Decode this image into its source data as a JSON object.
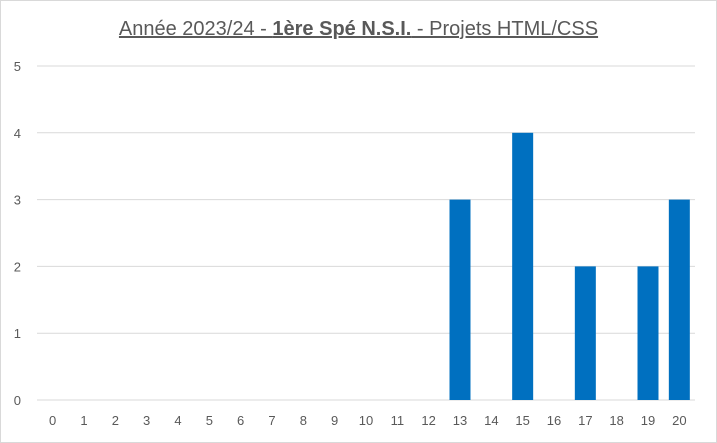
{
  "chart_data": {
    "type": "bar",
    "title": {
      "prefix": "Année 2023/24 - ",
      "bold": "1ère Spé N.S.I.",
      "suffix": " - Projets HTML/CSS"
    },
    "xlabel": "",
    "ylabel": "",
    "categories": [
      "0",
      "1",
      "2",
      "3",
      "4",
      "5",
      "6",
      "7",
      "8",
      "9",
      "10",
      "11",
      "12",
      "13",
      "14",
      "15",
      "16",
      "17",
      "18",
      "19",
      "20"
    ],
    "values": [
      0,
      0,
      0,
      0,
      0,
      0,
      0,
      0,
      0,
      0,
      0,
      0,
      0,
      3,
      0,
      4,
      0,
      2,
      0,
      2,
      3
    ],
    "ylim": [
      0,
      5
    ],
    "yticks": [
      "0",
      "1",
      "2",
      "3",
      "4",
      "5"
    ],
    "grid": true,
    "legend": "none",
    "colors": {
      "bar": "#0070c0",
      "grid": "#d9d9d9",
      "text": "#595959"
    }
  }
}
